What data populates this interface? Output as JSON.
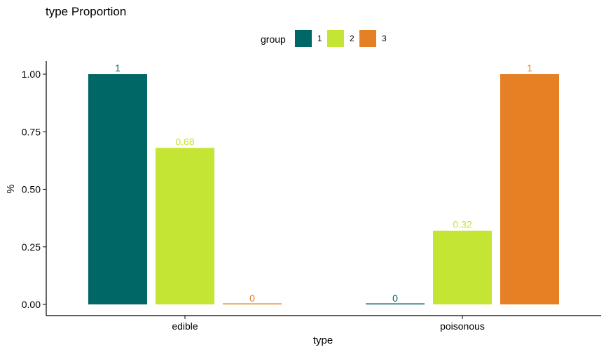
{
  "chart_data": {
    "type": "bar",
    "title": "type Proportion",
    "xlabel": "type",
    "ylabel": "%",
    "categories": [
      "edible",
      "poisonous"
    ],
    "legend": {
      "title": "group",
      "position": "top"
    },
    "series": [
      {
        "name": "1",
        "color": "#006666",
        "values": [
          1,
          0
        ],
        "labels": [
          "1",
          "0"
        ]
      },
      {
        "name": "2",
        "color": "#C5E535",
        "values": [
          0.68,
          0.32
        ],
        "labels": [
          "0.68",
          "0.32"
        ]
      },
      {
        "name": "3",
        "color": "#E68025",
        "values": [
          0,
          1
        ],
        "labels": [
          "0",
          "1"
        ]
      }
    ],
    "ylim": [
      0,
      1
    ],
    "yticks": [
      0,
      0.25,
      0.5,
      0.75,
      1
    ],
    "ytick_labels": [
      "0.00",
      "0.25",
      "0.50",
      "0.75",
      "1.00"
    ],
    "grid": false
  }
}
